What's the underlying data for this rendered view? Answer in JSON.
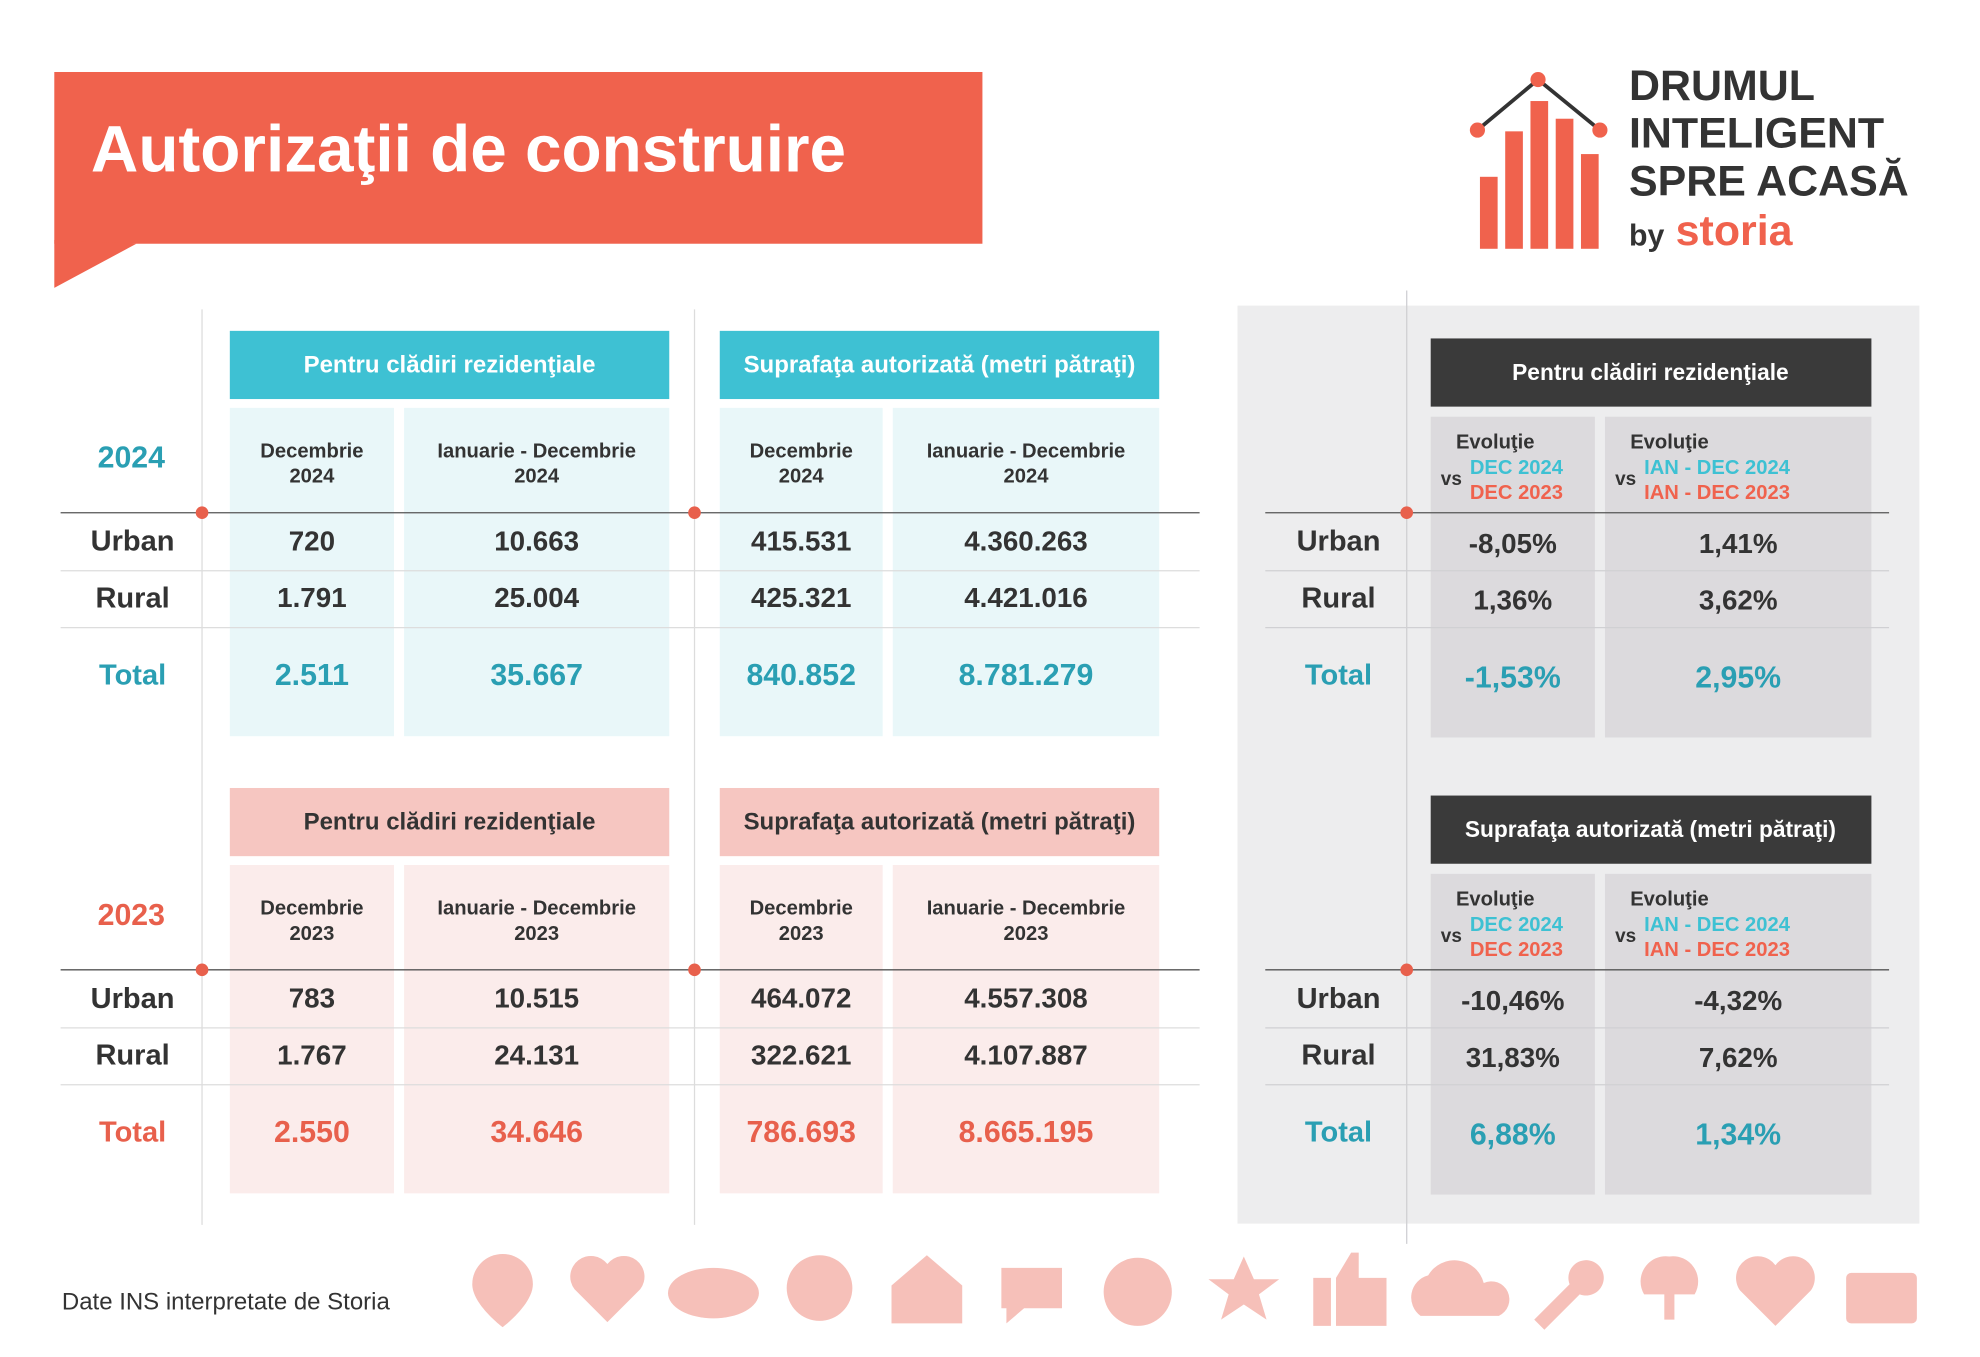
{
  "header": {
    "title": "Autorizaţii de construire",
    "logo": {
      "lines": [
        "DRUMUL",
        "INTELIGENT",
        "SPRE ACASĂ"
      ],
      "by": "by",
      "brand": "storia"
    }
  },
  "sections": [
    {
      "year": "2024",
      "groups": [
        {
          "title": "Pentru clădiri rezidenţiale",
          "columns": [
            [
              "Decembrie",
              "2024"
            ],
            [
              "Ianuarie - Decembrie",
              "2024"
            ]
          ]
        },
        {
          "title": "Suprafaţa autorizată (metri pătraţi)",
          "columns": [
            [
              "Decembrie",
              "2024"
            ],
            [
              "Ianuarie - Decembrie",
              "2024"
            ]
          ]
        }
      ],
      "rows": [
        {
          "label": "Urban",
          "values": [
            "720",
            "10.663",
            "415.531",
            "4.360.263"
          ]
        },
        {
          "label": "Rural",
          "values": [
            "1.791",
            "25.004",
            "425.321",
            "4.421.016"
          ]
        },
        {
          "label": "Total",
          "values": [
            "2.511",
            "35.667",
            "840.852",
            "8.781.279"
          ]
        }
      ]
    },
    {
      "year": "2023",
      "groups": [
        {
          "title": "Pentru clădiri rezidenţiale",
          "columns": [
            [
              "Decembrie",
              "2023"
            ],
            [
              "Ianuarie - Decembrie",
              "2023"
            ]
          ]
        },
        {
          "title": "Suprafaţa autorizată (metri pătraţi)",
          "columns": [
            [
              "Decembrie",
              "2023"
            ],
            [
              "Ianuarie - Decembrie",
              "2023"
            ]
          ]
        }
      ],
      "rows": [
        {
          "label": "Urban",
          "values": [
            "783",
            "10.515",
            "464.072",
            "4.557.308"
          ]
        },
        {
          "label": "Rural",
          "values": [
            "1.767",
            "24.131",
            "322.621",
            "4.107.887"
          ]
        },
        {
          "label": "Total",
          "values": [
            "2.550",
            "34.646",
            "786.693",
            "8.665.195"
          ]
        }
      ]
    }
  ],
  "comparison": [
    {
      "title": "Pentru clădiri rezidenţiale",
      "columns": [
        {
          "label": "Evoluţie",
          "vs": "vs",
          "current": "DEC 2024",
          "previous": "DEC 2023"
        },
        {
          "label": "Evoluţie",
          "vs": "vs",
          "current": "IAN - DEC 2024",
          "previous": "IAN - DEC 2023"
        }
      ],
      "rows": [
        {
          "label": "Urban",
          "values": [
            "-8,05%",
            "1,41%"
          ]
        },
        {
          "label": "Rural",
          "values": [
            "1,36%",
            "3,62%"
          ]
        },
        {
          "label": "Total",
          "values": [
            "-1,53%",
            "2,95%"
          ]
        }
      ]
    },
    {
      "title": "Suprafaţa autorizată (metri pătraţi)",
      "columns": [
        {
          "label": "Evoluţie",
          "vs": "vs",
          "current": "DEC 2024",
          "previous": "DEC 2023"
        },
        {
          "label": "Evoluţie",
          "vs": "vs",
          "current": "IAN - DEC 2024",
          "previous": "IAN - DEC 2023"
        }
      ],
      "rows": [
        {
          "label": "Urban",
          "values": [
            "-10,46%",
            "-4,32%"
          ]
        },
        {
          "label": "Rural",
          "values": [
            "31,83%",
            "7,62%"
          ]
        },
        {
          "label": "Total",
          "values": [
            "6,88%",
            "1,34%"
          ]
        }
      ]
    }
  ],
  "footer": {
    "source": "Date INS interpretate de Storia"
  }
}
